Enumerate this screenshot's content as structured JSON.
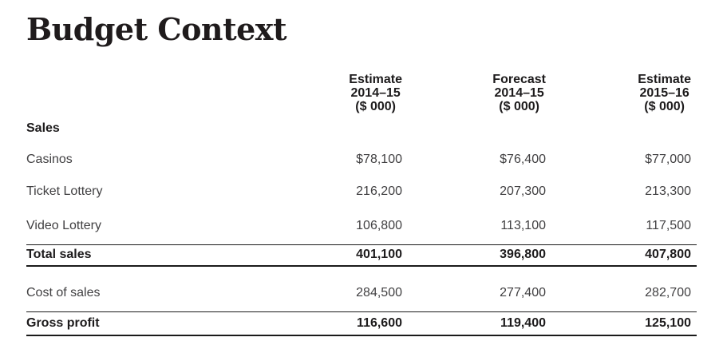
{
  "page": {
    "title": "Budget Context"
  },
  "table": {
    "section_label": "Sales",
    "columns": [
      {
        "lines": [
          "Estimate",
          "2014–15",
          "($ 000)"
        ]
      },
      {
        "lines": [
          "Forecast",
          "2014–15",
          "($ 000)"
        ]
      },
      {
        "lines": [
          "Estimate",
          "2015–16",
          "($ 000)"
        ]
      }
    ],
    "rows": [
      {
        "label": "Casinos",
        "values": [
          "$78,100",
          "$76,400",
          "$77,000"
        ]
      },
      {
        "label": "Ticket Lottery",
        "values": [
          "216,200",
          "207,300",
          "213,300"
        ]
      },
      {
        "label": "Video Lottery",
        "values": [
          "106,800",
          "113,100",
          "117,500"
        ]
      },
      {
        "label": "Total sales",
        "values": [
          "401,100",
          "396,800",
          "407,800"
        ]
      },
      {
        "label": "Cost of sales",
        "values": [
          "284,500",
          "277,400",
          "282,700"
        ]
      },
      {
        "label": "Gross profit",
        "values": [
          "116,600",
          "119,400",
          "125,100"
        ]
      }
    ],
    "colors": {
      "text_regular": "#414042",
      "text_bold": "#1d1b1c",
      "rule_line": "#1a1a1a",
      "background": "#ffffff"
    }
  }
}
